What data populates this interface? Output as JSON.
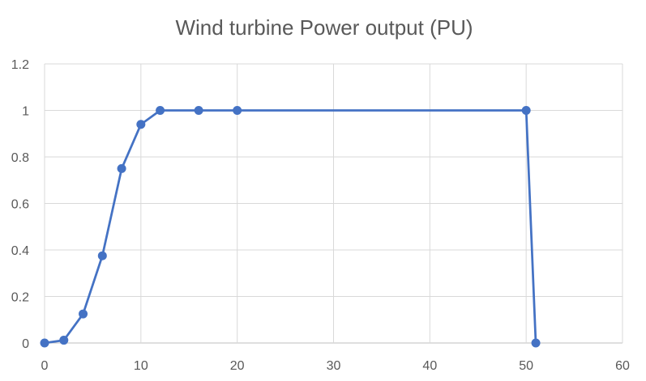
{
  "chart_data": {
    "type": "line",
    "title": "Wind turbine Power output (PU)",
    "xlabel": "",
    "ylabel": "",
    "xlim": [
      0,
      60
    ],
    "ylim": [
      0,
      1.2
    ],
    "xticks": [
      0,
      10,
      20,
      30,
      40,
      50,
      60
    ],
    "yticks": [
      0,
      0.2,
      0.4,
      0.6,
      0.8,
      1,
      1.2
    ],
    "xtick_labels": [
      "0",
      "10",
      "20",
      "30",
      "40",
      "50",
      "60"
    ],
    "ytick_labels": [
      "0",
      "0.2",
      "0.4",
      "0.6",
      "0.8",
      "1",
      "1.2"
    ],
    "grid": true,
    "legend": "none",
    "series": [
      {
        "color": "#4472C4",
        "x": [
          0,
          2,
          4,
          6,
          8,
          10,
          12,
          16,
          20,
          50,
          51
        ],
        "y": [
          0,
          0.012,
          0.125,
          0.375,
          0.75,
          0.94,
          1,
          1,
          1,
          1,
          0
        ]
      }
    ]
  }
}
